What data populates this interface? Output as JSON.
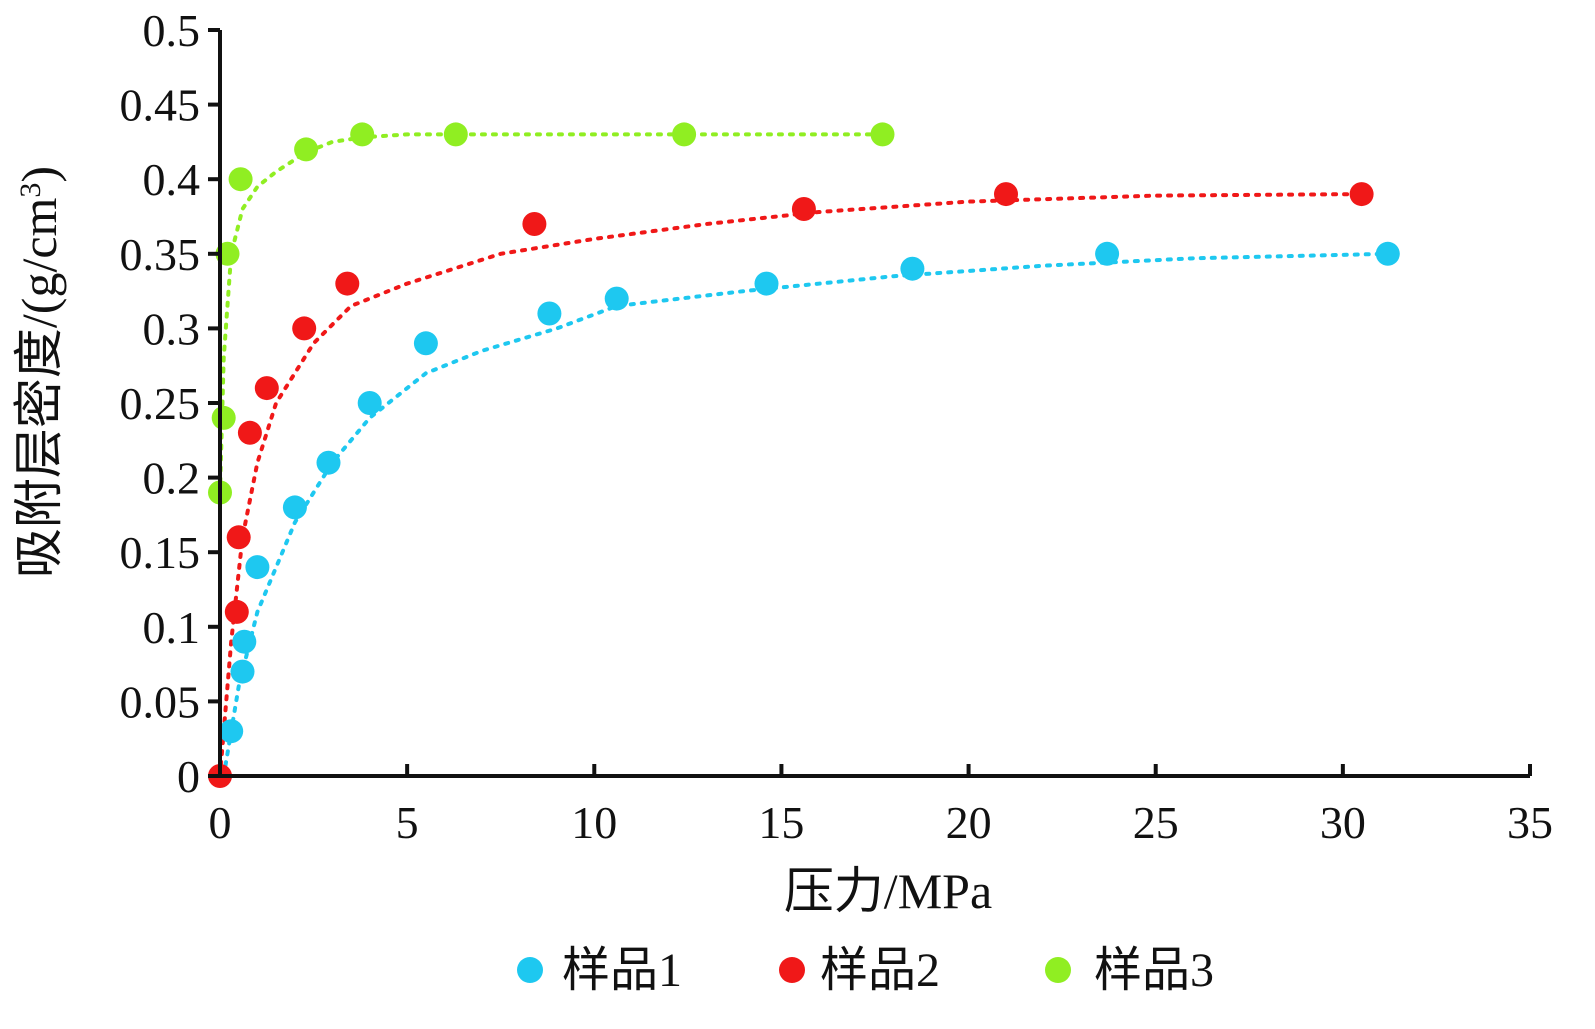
{
  "chart_data": {
    "type": "scatter",
    "xlabel": "压力/MPa",
    "ylabel_main": "吸附层密度/(g/cm",
    "ylabel_sup": "3",
    "ylabel_end": ")",
    "xlim": [
      0,
      35
    ],
    "ylim": [
      0,
      0.5
    ],
    "x_ticks": [
      0,
      5,
      10,
      15,
      20,
      25,
      30,
      35
    ],
    "x_tick_labels": [
      "0",
      "5",
      "10",
      "15",
      "20",
      "25",
      "30",
      "35"
    ],
    "y_ticks": [
      0,
      0.05,
      0.1,
      0.15,
      0.2,
      0.25,
      0.3,
      0.35,
      0.4,
      0.45,
      0.5
    ],
    "y_tick_labels": [
      "0",
      "0.05",
      "0.1",
      "0.15",
      "0.2",
      "0.25",
      "0.3",
      "0.35",
      "0.4",
      "0.45",
      "0.5"
    ],
    "grid": false,
    "legend_position": "bottom",
    "series": [
      {
        "name": "样品1",
        "color": "#1ec8f0",
        "points": [
          [
            0.3,
            0.03
          ],
          [
            0.6,
            0.07
          ],
          [
            0.65,
            0.09
          ],
          [
            1.0,
            0.14
          ],
          [
            2.0,
            0.18
          ],
          [
            2.9,
            0.21
          ],
          [
            4.0,
            0.25
          ],
          [
            5.5,
            0.29
          ],
          [
            8.8,
            0.31
          ],
          [
            10.6,
            0.32
          ],
          [
            14.6,
            0.33
          ],
          [
            18.5,
            0.34
          ],
          [
            23.7,
            0.35
          ],
          [
            31.2,
            0.35
          ]
        ],
        "fit": [
          [
            0.1,
            0.0
          ],
          [
            0.5,
            0.06
          ],
          [
            1.0,
            0.11
          ],
          [
            2.0,
            0.17
          ],
          [
            3.0,
            0.21
          ],
          [
            4.0,
            0.24
          ],
          [
            5.5,
            0.27
          ],
          [
            7.0,
            0.285
          ],
          [
            9.0,
            0.3
          ],
          [
            10.6,
            0.315
          ],
          [
            14.0,
            0.325
          ],
          [
            18.0,
            0.335
          ],
          [
            22.0,
            0.342
          ],
          [
            26.0,
            0.347
          ],
          [
            31.2,
            0.35
          ]
        ]
      },
      {
        "name": "样品2",
        "color": "#f01818",
        "points": [
          [
            0.0,
            0.0
          ],
          [
            0.45,
            0.11
          ],
          [
            0.5,
            0.16
          ],
          [
            0.8,
            0.23
          ],
          [
            1.25,
            0.26
          ],
          [
            2.25,
            0.3
          ],
          [
            3.4,
            0.33
          ],
          [
            8.4,
            0.37
          ],
          [
            15.6,
            0.38
          ],
          [
            21.0,
            0.39
          ],
          [
            30.5,
            0.39
          ]
        ],
        "fit": [
          [
            0.0,
            0.0
          ],
          [
            0.3,
            0.09
          ],
          [
            0.6,
            0.16
          ],
          [
            1.0,
            0.21
          ],
          [
            1.5,
            0.25
          ],
          [
            2.5,
            0.29
          ],
          [
            3.5,
            0.315
          ],
          [
            5.0,
            0.33
          ],
          [
            7.5,
            0.35
          ],
          [
            10.0,
            0.36
          ],
          [
            13.0,
            0.37
          ],
          [
            16.0,
            0.378
          ],
          [
            20.0,
            0.385
          ],
          [
            25.0,
            0.389
          ],
          [
            30.5,
            0.39
          ]
        ]
      },
      {
        "name": "样品3",
        "color": "#90ee22",
        "points": [
          [
            0.0,
            0.19
          ],
          [
            0.1,
            0.24
          ],
          [
            0.2,
            0.35
          ],
          [
            0.55,
            0.4
          ],
          [
            2.3,
            0.42
          ],
          [
            3.8,
            0.43
          ],
          [
            6.3,
            0.43
          ],
          [
            12.4,
            0.43
          ],
          [
            17.7,
            0.43
          ]
        ],
        "fit": [
          [
            0.0,
            0.19
          ],
          [
            0.1,
            0.28
          ],
          [
            0.3,
            0.35
          ],
          [
            0.6,
            0.38
          ],
          [
            1.0,
            0.395
          ],
          [
            1.5,
            0.405
          ],
          [
            2.3,
            0.418
          ],
          [
            3.0,
            0.425
          ],
          [
            3.8,
            0.428
          ],
          [
            5.0,
            0.43
          ],
          [
            7.0,
            0.43
          ],
          [
            10.0,
            0.43
          ],
          [
            14.0,
            0.43
          ],
          [
            17.7,
            0.43
          ]
        ]
      }
    ]
  }
}
